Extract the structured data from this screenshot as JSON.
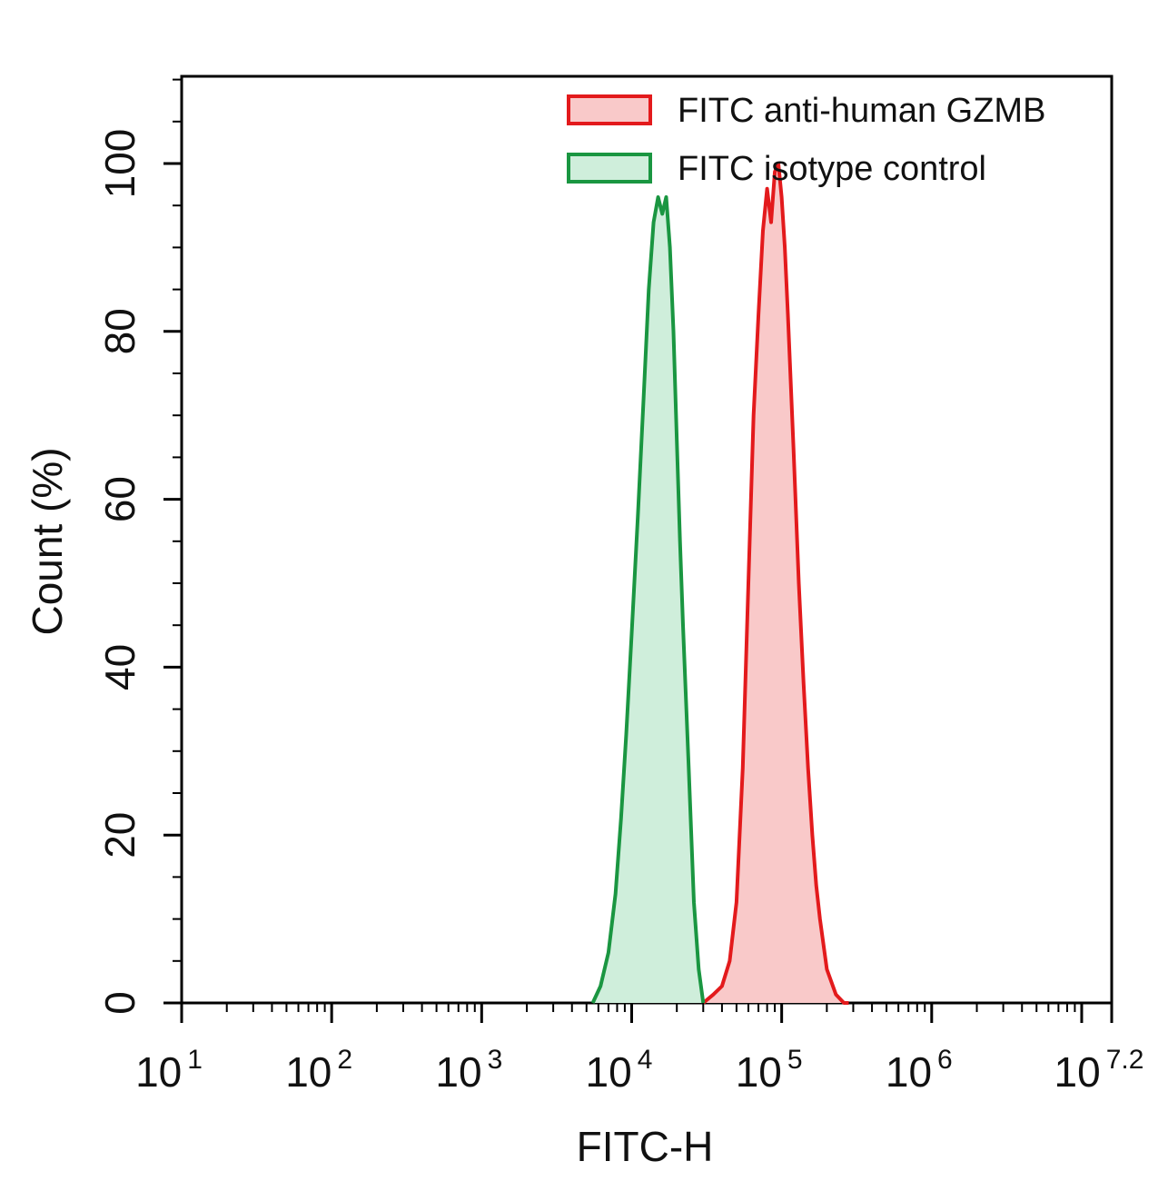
{
  "chart_data": {
    "type": "area",
    "title": "",
    "xlabel": "FITC-H",
    "ylabel": "Count  (%)",
    "xscale": "log",
    "xlim": [
      10,
      15848931.92
    ],
    "ylim": [
      0,
      100
    ],
    "x_ticks": [
      {
        "base": "10",
        "exp": "1",
        "value": 10
      },
      {
        "base": "10",
        "exp": "2",
        "value": 100
      },
      {
        "base": "10",
        "exp": "3",
        "value": 1000
      },
      {
        "base": "10",
        "exp": "4",
        "value": 10000
      },
      {
        "base": "10",
        "exp": "5",
        "value": 100000
      },
      {
        "base": "10",
        "exp": "6",
        "value": 1000000
      },
      {
        "base": "10",
        "exp": "7.2",
        "value": 15848931.92
      }
    ],
    "y_ticks": [
      "0",
      "20",
      "40",
      "60",
      "80",
      "100"
    ],
    "grid": false,
    "legend_position": "top-right",
    "series": [
      {
        "name": "FITC anti-human GZMB",
        "color": "#e31a1c",
        "fill": "#f9c9c9",
        "x": [
          30000,
          35000,
          40000,
          45000,
          50000,
          55000,
          60000,
          65000,
          70000,
          75000,
          80000,
          85000,
          90000,
          95000,
          100000,
          105000,
          110000,
          120000,
          130000,
          140000,
          150000,
          160000,
          170000,
          180000,
          200000,
          230000,
          260000,
          280000
        ],
        "y": [
          0,
          1,
          2,
          5,
          12,
          28,
          50,
          70,
          82,
          92,
          97,
          93,
          99,
          100,
          96,
          90,
          82,
          66,
          50,
          38,
          28,
          20,
          14,
          10,
          4,
          1,
          0,
          0
        ]
      },
      {
        "name": "FITC  isotype control",
        "color": "#1a9641",
        "fill": "#cfeedb",
        "x": [
          5500,
          6200,
          7000,
          7800,
          8500,
          9200,
          10000,
          11000,
          12000,
          13000,
          14000,
          15000,
          16000,
          17000,
          18000,
          19000,
          20000,
          21000,
          22000,
          24000,
          26000,
          28000,
          30000
        ],
        "y": [
          0,
          2,
          6,
          13,
          22,
          32,
          44,
          58,
          72,
          85,
          93,
          96,
          94,
          96,
          90,
          80,
          67,
          55,
          45,
          28,
          12,
          4,
          0
        ]
      }
    ]
  }
}
